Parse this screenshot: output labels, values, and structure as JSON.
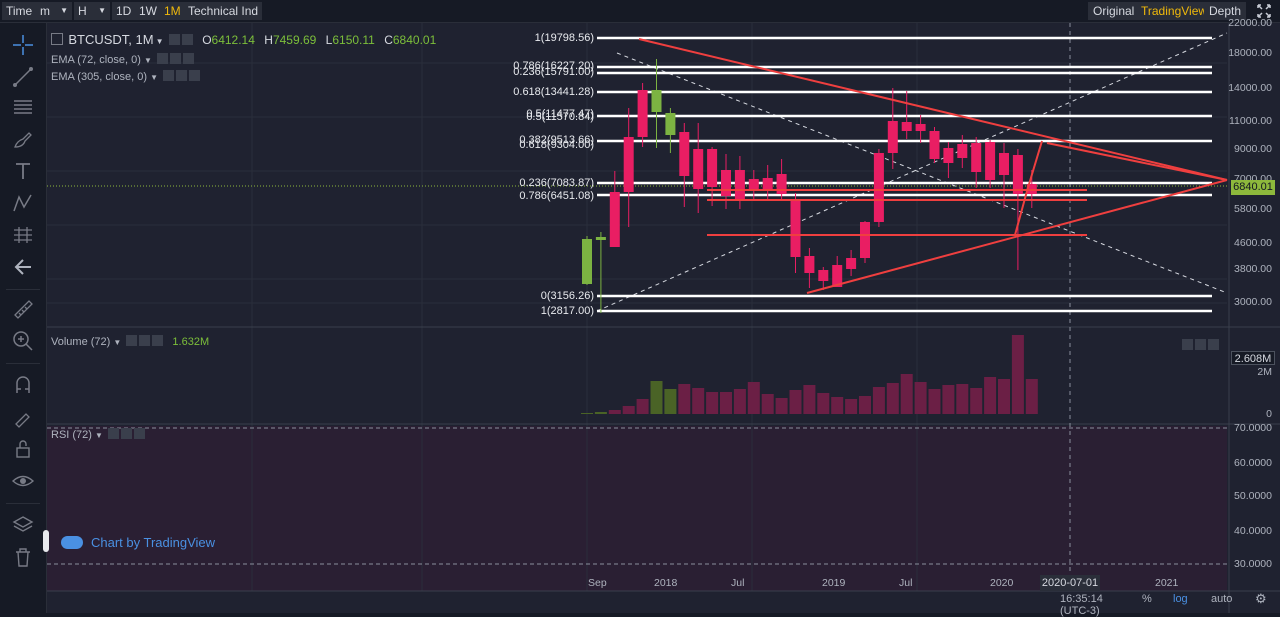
{
  "toolbar": {
    "time_label": "Time",
    "minute_label": "m",
    "hour_label": "H",
    "day_label": "1D",
    "week_label": "1W",
    "month_label": "1M",
    "technical_label": "Technical Ind",
    "original_label": "Original",
    "tradingview_label": "TradingView",
    "depth_label": "Depth"
  },
  "legend": {
    "symbol": "BTCUSDT, 1M",
    "open_label": "O",
    "open": "6412.14",
    "high_label": "H",
    "high": "7459.69",
    "low_label": "L",
    "low": "6150.11",
    "close_label": "C",
    "close": "6840.01",
    "ema1": "EMA (72, close, 0)",
    "ema2": "EMA (305, close, 0)"
  },
  "volume": {
    "label": "Volume (72)",
    "value": "1.632M",
    "current_box": "2.608M"
  },
  "rsi": {
    "label": "RSI (72)"
  },
  "price_axis": [
    "22000.00",
    "18000.00",
    "14000.00",
    "11000.00",
    "9000.00",
    "7000.00",
    "5800.00",
    "4600.00",
    "3800.00",
    "3000.00"
  ],
  "current_price": "6840.01",
  "volume_axis": [
    "2M",
    "0"
  ],
  "rsi_axis": [
    "70.0000",
    "60.0000",
    "50.0000",
    "40.0000",
    "30.0000"
  ],
  "time_axis": [
    "Sep",
    "2018",
    "Jul",
    "2019",
    "Jul",
    "2020",
    "2021"
  ],
  "crosshair_date": "2020-07-01",
  "fib_labels": [
    "1(19798.56)",
    "0.786(16227.20)",
    "0.236(15791.00)",
    "0.618(13441.28)",
    "0.5(11477.47)",
    "0.5(11570.84)",
    "0.382(9513.66)",
    "0.618(9304.00)",
    "0.236(7083.87)",
    "0.786(6451.08)",
    "0(3156.26)",
    "1(2817.00)"
  ],
  "status": {
    "time": "16:35:14 (UTC-3)",
    "percent": "%",
    "log": "log",
    "auto": "auto"
  },
  "watermark": "Chart by TradingView",
  "colors": {
    "up": "#7cb342",
    "down": "#e91e63",
    "active": "#f0b90b",
    "accent": "#4a90e2"
  }
}
